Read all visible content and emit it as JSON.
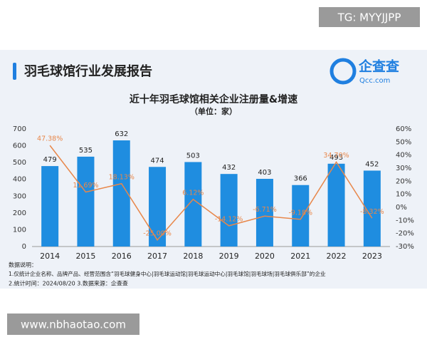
{
  "watermark_top": "TG: MYYJJPP",
  "watermark_bottom": "www.nbhaotao.com",
  "header": {
    "title": "羽毛球馆行业发展报告",
    "logo_text": "企查查",
    "logo_sub": "Qcc.com"
  },
  "notes": [
    "数据说明：",
    "1.仅统计企业名称、品牌产品、经营范围含“羽毛球健身中心|羽毛球运动馆|羽毛球运动中心|羽毛球馆|羽毛球场|羽毛球俱乐部”的企业",
    "2.统计时间：2024/08/20    3.数据来源：企查查"
  ],
  "chart_data": {
    "type": "bar",
    "title": "近十年羽毛球馆相关企业注册量&增速",
    "subtitle": "（单位：家）",
    "categories": [
      "2014",
      "2015",
      "2016",
      "2017",
      "2018",
      "2019",
      "2020",
      "2021",
      "2022",
      "2023"
    ],
    "series": [
      {
        "type": "bar",
        "color": "#1f8de0",
        "values": [
          479,
          535,
          632,
          474,
          503,
          432,
          403,
          366,
          493,
          452
        ]
      },
      {
        "type": "line",
        "axis": "y2",
        "color": "#e8874a",
        "values": [
          47.38,
          11.69,
          18.13,
          -25.0,
          6.12,
          -14.12,
          -6.71,
          -9.18,
          34.7,
          -8.32
        ],
        "value_labels": [
          "47.38%",
          "11.69%",
          "18.13%",
          "-25.00%",
          "6.12%",
          "-14.12%",
          "-6.71%",
          "-9.18%",
          "34.70%",
          "-8.32%"
        ]
      }
    ],
    "ylim": [
      0,
      700
    ],
    "yticks": [
      0,
      100,
      200,
      300,
      400,
      500,
      600,
      700
    ],
    "y2lim": [
      -30,
      60
    ],
    "y2ticks": [
      {
        "value": -30,
        "label": "-30%"
      },
      {
        "value": -20,
        "label": "-20%"
      },
      {
        "value": -10,
        "label": "-10%"
      },
      {
        "value": 0,
        "label": "0%"
      },
      {
        "value": 10,
        "label": "10%"
      },
      {
        "value": 20,
        "label": "20%"
      },
      {
        "value": 30,
        "label": "30%"
      },
      {
        "value": 40,
        "label": "40%"
      },
      {
        "value": 50,
        "label": "50%"
      },
      {
        "value": 60,
        "label": "60%"
      }
    ]
  }
}
